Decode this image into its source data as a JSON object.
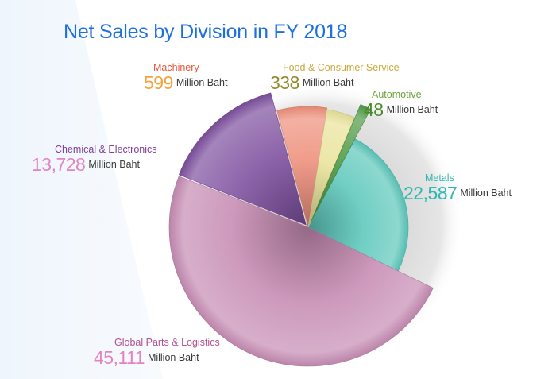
{
  "chart_data": {
    "type": "pie",
    "title": "Net Sales by Division in FY 2018",
    "unit": "Million Baht",
    "slices": [
      {
        "label": "Metals",
        "value": 22587,
        "display": "22,587",
        "color": "#5cc7bb"
      },
      {
        "label": "Global Parts & Logistics",
        "value": 45111,
        "display": "45,111",
        "color": "#c68bb3"
      },
      {
        "label": "Chemical & Electronics",
        "value": 13728,
        "display": "13,728",
        "color": "#7d4f9e"
      },
      {
        "label": "Machinery",
        "value": 599,
        "display": "599",
        "color": "#ee8f7a"
      },
      {
        "label": "Food & Consumer Service",
        "value": 338,
        "display": "338",
        "color": "#e9e39a"
      },
      {
        "label": "Automotive",
        "value": 48,
        "display": "48",
        "color": "#4f9a45"
      }
    ],
    "label_colors": {
      "Machinery": {
        "name": "#e7573c",
        "value": "#f5a23a"
      },
      "Food & Consumer Service": {
        "name": "#c9a93c",
        "value": "#8f8a2a"
      },
      "Automotive": {
        "name": "#6aa23a",
        "value": "#4a8a2a"
      },
      "Metals": {
        "name": "#2fb8b0",
        "value": "#2fb8b0"
      },
      "Chemical & Electronics": {
        "name": "#7d3f98",
        "value": "#e184c4"
      },
      "Global Parts & Logistics": {
        "name": "#b0508e",
        "value": "#e184c4"
      }
    }
  }
}
